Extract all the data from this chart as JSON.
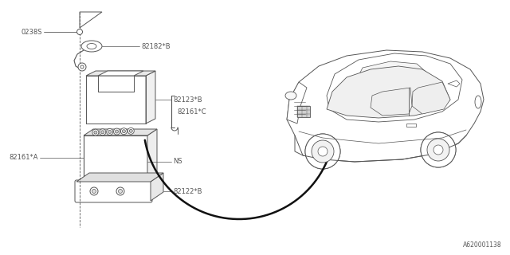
{
  "bg_color": "#ffffff",
  "diagram_id": "A620001138",
  "line_color": "#555555",
  "text_color": "#555555",
  "font_size": 6.0,
  "arrow_color": "#111111",
  "parts_labels": {
    "0238S": [
      48,
      42
    ],
    "82182B": "82182*B",
    "82123B": "82123*B",
    "82161C": "82161*C",
    "82161A": "82161*A",
    "NS": "NS",
    "82122B": "82122*B"
  }
}
